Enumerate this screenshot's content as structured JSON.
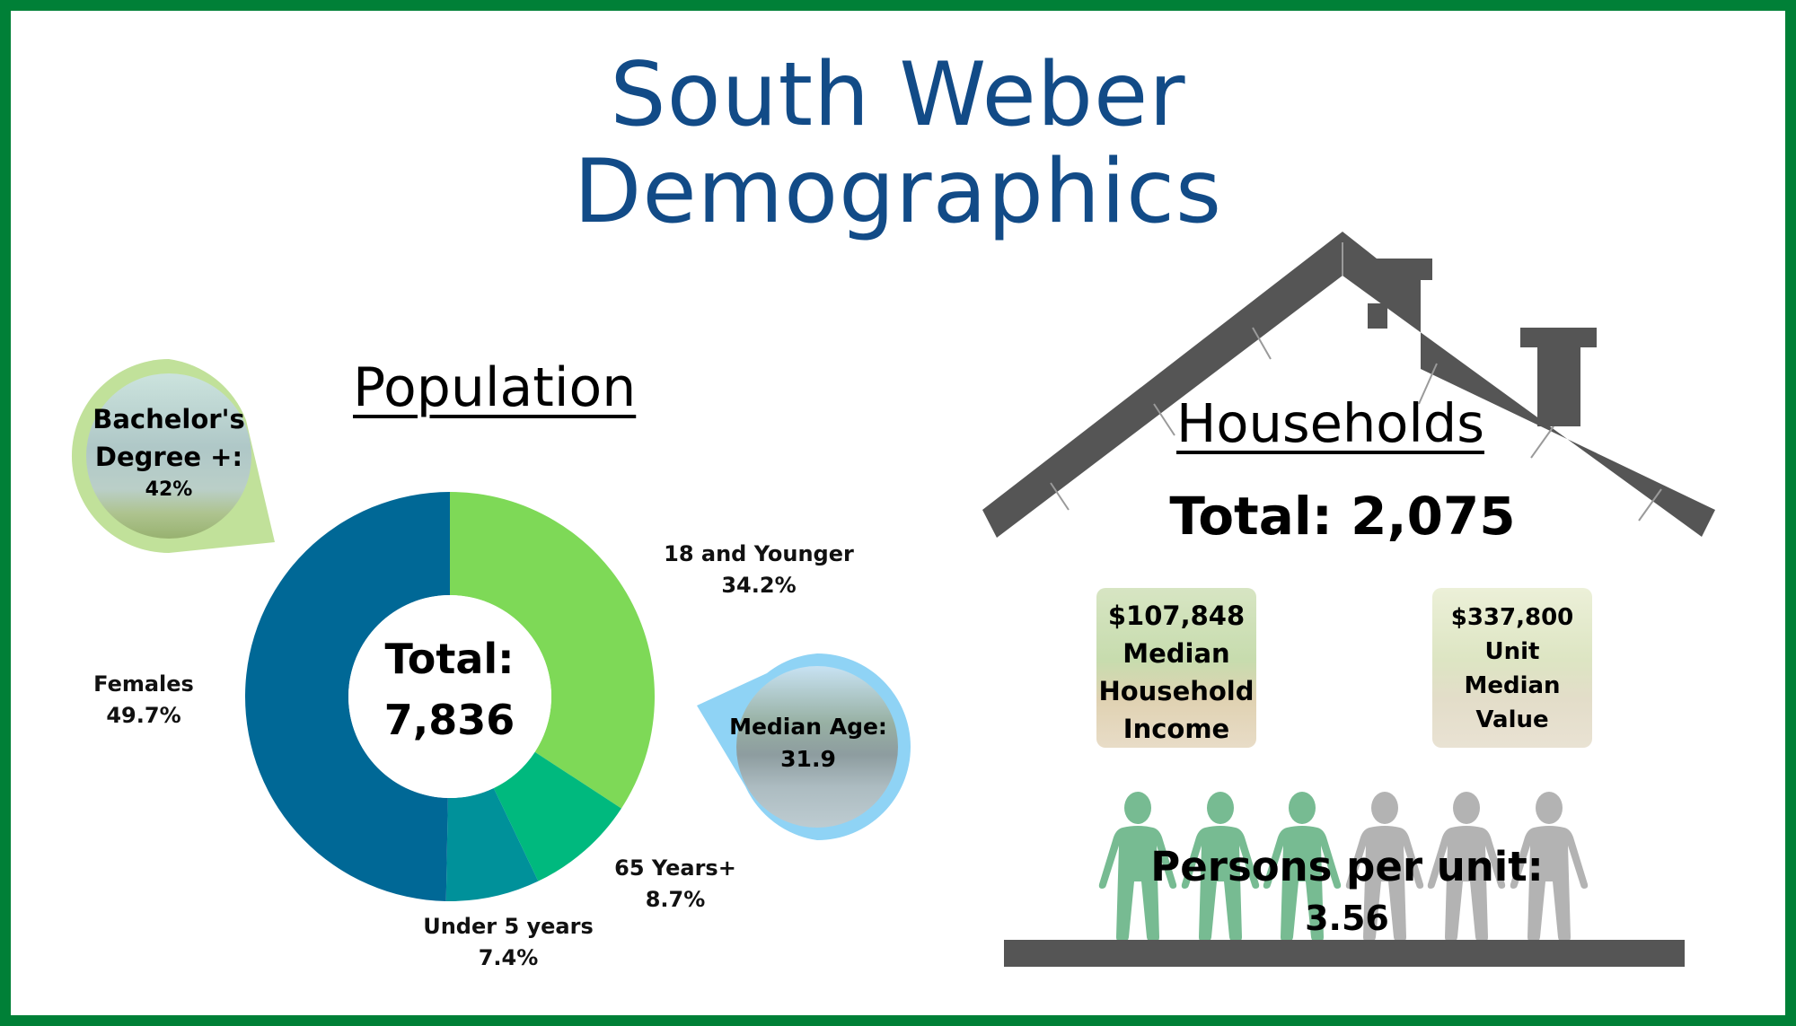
{
  "title": {
    "line1": "South Weber",
    "line2": "Demographics"
  },
  "colors": {
    "border": "#008037",
    "title": "#124b87",
    "house": "#555555",
    "person_filled": "#77bb92",
    "person_empty": "#b3b3b3",
    "bubble_green": "#c1e19a",
    "bubble_blue": "#8fd3f5"
  },
  "population": {
    "heading": "Population",
    "center_line1": "Total:",
    "center_line2": "7,836",
    "bachelors": {
      "label_line1": "Bachelor's",
      "label_line2": "Degree +:",
      "value": "42%"
    },
    "median_age": {
      "label": "Median Age:",
      "value": "31.9"
    },
    "labels": {
      "youth": {
        "name": "18 and Younger",
        "pct": "34.2%"
      },
      "seniors": {
        "name": "65 Years+",
        "pct": "8.7%"
      },
      "under5": {
        "name": "Under 5 years",
        "pct": "7.4%"
      },
      "females": {
        "name": "Females",
        "pct": "49.7%"
      }
    }
  },
  "chart_data": {
    "type": "pie",
    "title": "Population",
    "center_text": "Total: 7,836",
    "categories": [
      "18 and Younger",
      "65 Years+",
      "Under 5 years",
      "Females"
    ],
    "values": [
      34.2,
      8.7,
      7.4,
      49.7
    ],
    "colors": [
      "#7ed957",
      "#00b97e",
      "#00919a",
      "#006896"
    ],
    "donut": true,
    "unit": "%"
  },
  "households": {
    "heading": "Households",
    "total": "Total: 2,075",
    "income_card": {
      "value": "$107,848",
      "line2": "Median",
      "line3": "Household",
      "line4": "Income"
    },
    "value_card": {
      "value": "$337,800",
      "line2": "Unit",
      "line3": "Median",
      "line4": "Value"
    },
    "persons_label": "Persons per unit:",
    "persons_value": "3.56",
    "persons_icons_filled": 3,
    "persons_icons_total": 6
  }
}
